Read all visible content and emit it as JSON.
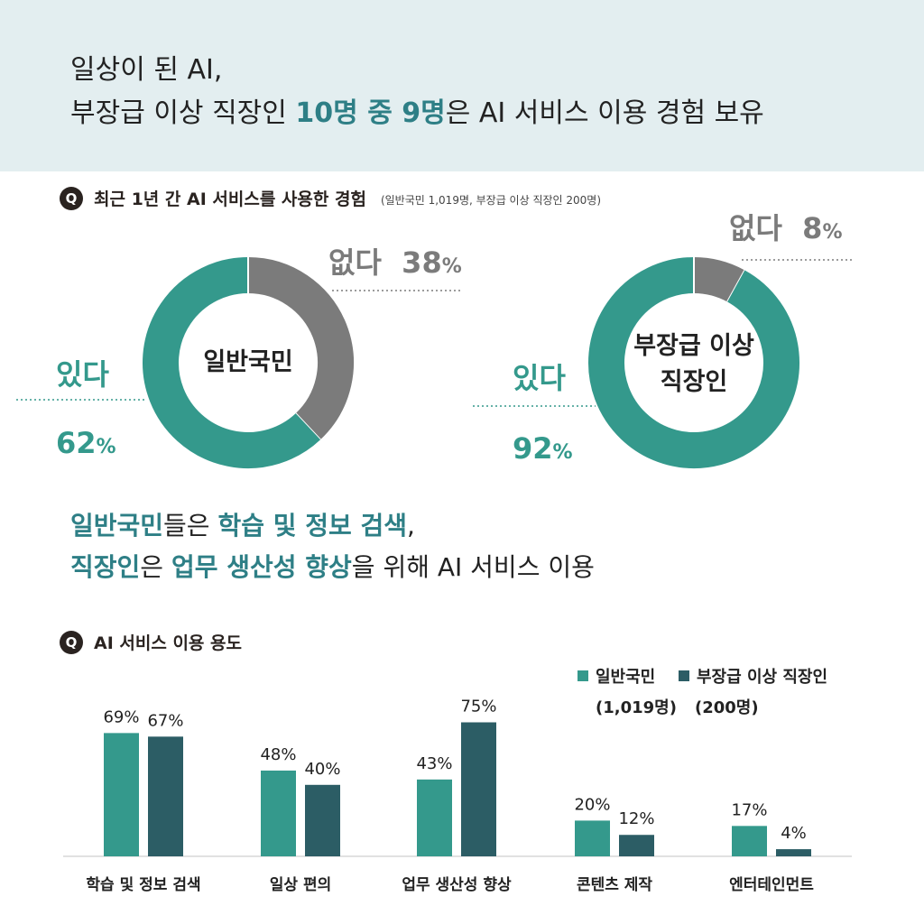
{
  "header": {
    "line1": "일상이 된 AI,",
    "line2_pre": "부장급 이상 직장인 ",
    "line2_hl": "10명 중 9명",
    "line2_post": "은 AI 서비스 이용 경험 보유"
  },
  "q1": {
    "badge": "Q",
    "title": "최근 1년 간 AI 서비스를 사용한 경험",
    "note": "(일반국민 1,019명, 부장급 이상 직장인 200명)"
  },
  "q2": {
    "badge": "Q",
    "title": "AI 서비스 이용 용도"
  },
  "subhead": {
    "l1_hl1": "일반국민",
    "l1_mid": "들은 ",
    "l1_hl2": "학습 및 정보 검색",
    "l1_end": ",",
    "l2_hl1": "직장인",
    "l2_mid": "은 ",
    "l2_hl2": "업무 생산성 향상",
    "l2_end": "을 위해 AI 서비스 이용"
  },
  "colors": {
    "green": "#34998c",
    "dark": "#2c5d65",
    "gray": "#7b7b7b",
    "axis": "#d7d7d7"
  },
  "chart_data": [
    {
      "type": "pie",
      "title": "최근 1년 간 AI 서비스를 사용한 경험",
      "center_label": "일반국민",
      "slices": [
        {
          "label": "있다",
          "value": 62,
          "value_text": "62",
          "unit": "%"
        },
        {
          "label": "없다",
          "value": 38,
          "value_text": "38",
          "unit": "%"
        }
      ]
    },
    {
      "type": "pie",
      "title": "최근 1년 간 AI 서비스를 사용한 경험",
      "center_label_1": "부장급 이상",
      "center_label_2": "직장인",
      "slices": [
        {
          "label": "있다",
          "value": 92,
          "value_text": "92",
          "unit": "%"
        },
        {
          "label": "없다",
          "value": 8,
          "value_text": "8",
          "unit": "%"
        }
      ]
    },
    {
      "type": "bar",
      "title": "AI 서비스 이용 용도",
      "categories": [
        "학습 및 정보 검색",
        "일상 편의",
        "업무 생산성 향상",
        "콘텐츠 제작",
        "엔터테인먼트"
      ],
      "series": [
        {
          "name": "일반국민",
          "sub": "(1,019명)",
          "values": [
            69,
            48,
            43,
            20,
            17
          ]
        },
        {
          "name": "부장급 이상 직장인",
          "sub": "(200명)",
          "values": [
            67,
            40,
            75,
            12,
            4
          ]
        }
      ],
      "ylim": [
        0,
        100
      ],
      "unit": "%"
    }
  ]
}
